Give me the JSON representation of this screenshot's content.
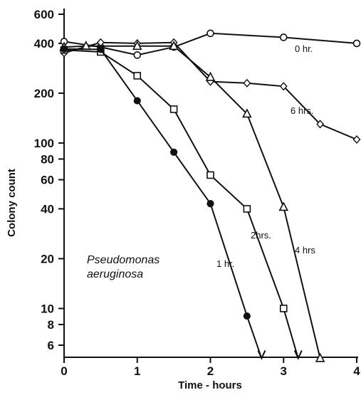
{
  "chart_data": {
    "type": "line",
    "xlabel": "Time - hours",
    "ylabel": "Colony count",
    "xlim": [
      0,
      4
    ],
    "ylim": [
      5,
      600
    ],
    "y_scale": "log",
    "grid": false,
    "x_ticks": [
      0,
      1,
      2,
      3,
      4
    ],
    "x_tick_labels": [
      "0",
      "1",
      "2",
      "3",
      "4"
    ],
    "y_ticks": [
      6,
      8,
      10,
      20,
      40,
      60,
      80,
      100,
      200,
      400,
      600
    ],
    "y_tick_labels": [
      "6",
      "8",
      "10",
      "20",
      "40",
      "60",
      "80",
      "100",
      "200",
      "400",
      "600"
    ],
    "annotation": [
      "Pseudomonas",
      "aeruginosa"
    ],
    "series": [
      {
        "name": "0 hr.",
        "marker": "open-circle",
        "x": [
          0,
          0.5,
          1,
          1.5,
          2,
          3,
          4
        ],
        "y": [
          410,
          380,
          340,
          380,
          460,
          435,
          400
        ]
      },
      {
        "name": "6 hrs.",
        "marker": "open-diamond",
        "x": [
          0,
          0.5,
          1,
          1.5,
          2,
          2.5,
          3,
          3.5,
          4
        ],
        "y": [
          350,
          405,
          400,
          405,
          235,
          230,
          220,
          130,
          105
        ]
      },
      {
        "name": "4 hrs",
        "marker": "open-triangle",
        "x": [
          0,
          0.3,
          1,
          1.5,
          2,
          2.5,
          3,
          3.5
        ],
        "y": [
          380,
          385,
          385,
          385,
          250,
          150,
          41,
          5
        ],
        "arrow_end": true
      },
      {
        "name": "2hrs.",
        "marker": "open-square",
        "x": [
          0,
          0.5,
          1,
          1.5,
          2,
          2.5,
          3
        ],
        "y": [
          365,
          355,
          255,
          160,
          64,
          40,
          10
        ],
        "arrow_to": [
          3.2,
          5
        ]
      },
      {
        "name": "1 hr.",
        "marker": "filled-circle",
        "x": [
          0,
          0.5,
          1,
          1.5,
          2,
          2.5
        ],
        "y": [
          370,
          368,
          180,
          88,
          43,
          9
        ],
        "arrow_to": [
          2.7,
          5
        ]
      }
    ]
  }
}
